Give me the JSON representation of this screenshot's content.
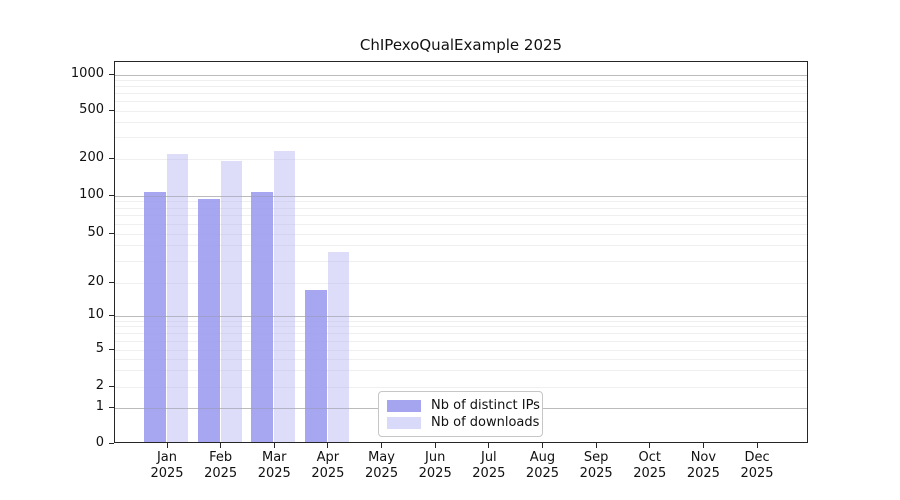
{
  "chart_data": {
    "type": "bar",
    "title": "ChIPexoQualExample 2025",
    "year_label": "2025",
    "categories": [
      "Jan",
      "Feb",
      "Mar",
      "Apr",
      "May",
      "Jun",
      "Jul",
      "Aug",
      "Sep",
      "Oct",
      "Nov",
      "Dec"
    ],
    "series": [
      {
        "name": "Nb of distinct IPs",
        "legend_color": "#a5a5ef",
        "bar_fill": "rgba(150,150,238,0.84)",
        "values": [
          105,
          93,
          106,
          17,
          null,
          null,
          null,
          null,
          null,
          null,
          null,
          null
        ]
      },
      {
        "name": "Nb of downloads",
        "legend_color": "#d9d9fa",
        "bar_fill": "rgba(180,180,245,0.45)",
        "values": [
          215,
          190,
          227,
          35,
          null,
          null,
          null,
          null,
          null,
          null,
          null,
          null
        ]
      }
    ],
    "y_axis": {
      "ticks": [
        0,
        1,
        2,
        5,
        10,
        20,
        50,
        100,
        200,
        500,
        1000
      ],
      "scale": "log-like",
      "ylim": [
        0,
        1200
      ]
    },
    "xlabel": "",
    "ylabel": "",
    "grid": "horizontal",
    "legend_position": "bottom-center",
    "colors": {
      "grid_major": "#c9c9c9",
      "grid_minor": "#efefef",
      "spine": "#262626",
      "text": "#111111"
    }
  }
}
